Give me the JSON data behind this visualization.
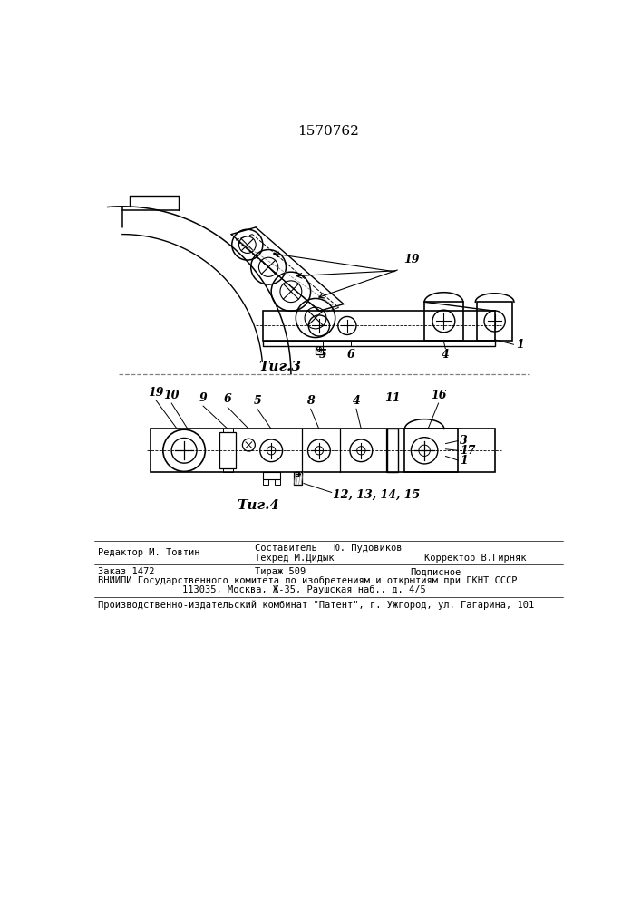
{
  "title": "1570762",
  "fig3_label": "Τиг.3",
  "fig4_label": "Τиг.4",
  "background_color": "#ffffff",
  "line_color": "#000000",
  "title_fontsize": 11,
  "annot_fontsize": 9,
  "footer_text_1a": "Составитель   Ю. Пудовиков",
  "footer_text_1b": "Редактор М. Товтин",
  "footer_text_1c": "Техред М.Дидык",
  "footer_text_1d": "Корректор В.Гирняк",
  "footer_text_2a": "Заказ 1472",
  "footer_text_2b": "Тираж 509",
  "footer_text_2c": "Подписное",
  "footer_text_3": "ВНИИПИ Государственного комитета по изобретениям и открытиям при ГКНТ СССР",
  "footer_text_4": "113035, Москва, Ж-35, Раушская наб., д. 4/5",
  "footer_text_5": "Производственно-издательский комбинат \"Патент\", г. Ужгород, ул. Гагарина, 101"
}
